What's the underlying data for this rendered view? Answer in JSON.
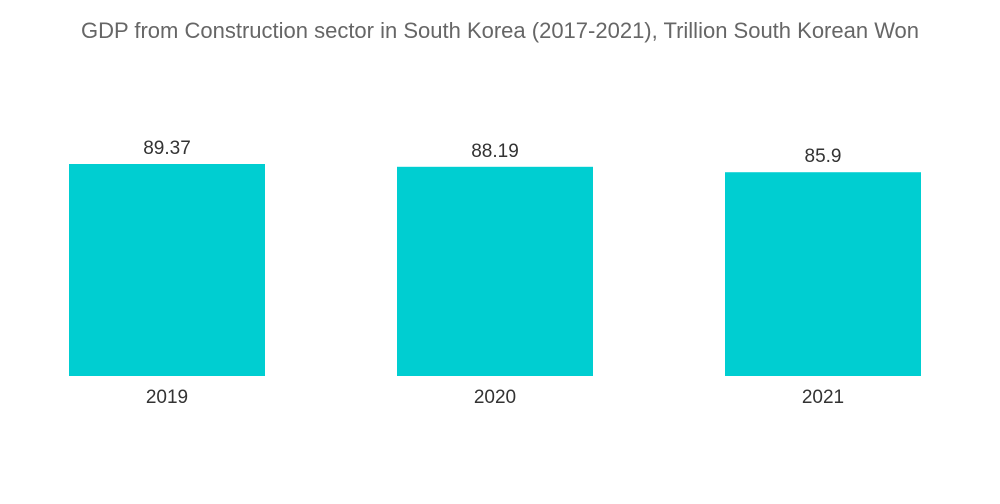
{
  "chart_data": {
    "type": "bar",
    "title": "GDP from Construction sector in South Korea (2017-2021), Trillion South Korean Won",
    "categories": [
      "2019",
      "2020",
      "2021"
    ],
    "values": [
      89.37,
      88.19,
      85.9
    ],
    "value_labels": [
      "89.37",
      "88.19",
      "85.9"
    ],
    "xlabel": "",
    "ylabel": "",
    "ylim": [
      0,
      89.37
    ],
    "grid": false,
    "legend": "none",
    "bar_color": "#00CED1"
  }
}
